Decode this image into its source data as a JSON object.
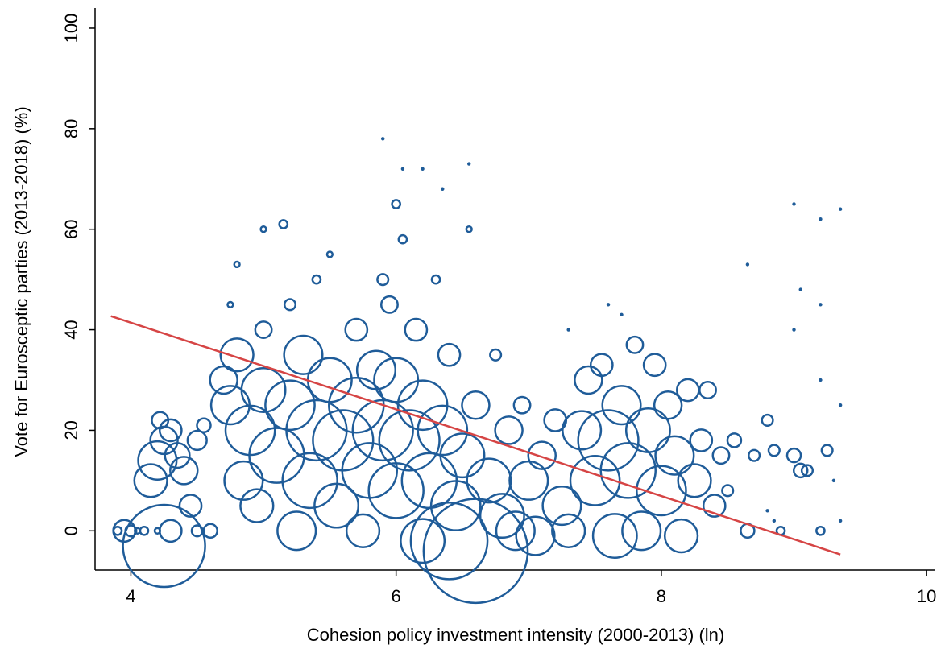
{
  "chart_data": {
    "type": "scatter",
    "x_label": "Cohesion policy investment intensity (2000-2013) (ln)",
    "y_label": "Vote for Eurosceptic parties (2013-2018) (%)",
    "xlim": [
      3.73,
      10.06
    ],
    "xticks": [
      4,
      6,
      8,
      10
    ],
    "ylim": [
      -7.8,
      104
    ],
    "yticks": [
      0,
      20,
      40,
      60,
      80,
      100
    ],
    "points": {
      "color": "#1f5c99",
      "x": [
        3.9,
        4.0,
        4.05,
        4.1,
        4.2,
        3.95,
        4.25,
        4.3,
        4.2,
        4.15,
        4.25,
        4.3,
        4.35,
        4.22,
        4.4,
        4.45,
        4.5,
        4.55,
        4.6,
        4.5,
        4.7,
        4.75,
        4.8,
        4.75,
        4.8,
        4.9,
        4.85,
        4.95,
        5.0,
        5.0,
        5.0,
        5.1,
        5.15,
        5.2,
        5.2,
        5.25,
        5.3,
        5.35,
        5.4,
        5.4,
        5.5,
        5.5,
        5.55,
        5.6,
        5.7,
        5.7,
        5.75,
        5.8,
        5.85,
        5.9,
        5.9,
        5.95,
        6.0,
        6.0,
        6.0,
        6.05,
        6.1,
        6.15,
        6.2,
        6.2,
        6.25,
        6.3,
        6.35,
        6.4,
        6.4,
        6.45,
        6.5,
        6.55,
        6.6,
        6.6,
        6.7,
        6.75,
        6.8,
        6.85,
        6.9,
        6.95,
        7.0,
        7.05,
        7.1,
        7.2,
        7.25,
        7.3,
        7.4,
        7.45,
        7.5,
        7.55,
        7.6,
        7.65,
        7.7,
        7.75,
        7.8,
        7.85,
        7.9,
        7.95,
        8.0,
        8.05,
        8.1,
        8.15,
        8.2,
        8.25,
        8.3,
        8.35,
        8.4,
        8.45,
        8.5,
        8.55,
        8.65,
        8.7,
        8.8,
        8.85,
        8.9,
        9.0,
        9.05,
        9.1,
        9.2,
        9.25,
        8.65,
        8.8,
        8.85,
        9.0,
        9.0,
        9.05,
        9.2,
        9.2,
        9.2,
        9.35,
        9.35,
        9.35,
        9.3,
        5.9,
        6.2,
        6.55,
        6.35,
        6.05,
        7.6,
        7.7,
        7.3
      ],
      "y": [
        0,
        0,
        0,
        0,
        0,
        0,
        -3,
        0,
        14,
        10,
        18,
        20,
        15,
        22,
        12,
        5,
        18,
        21,
        0,
        0,
        30,
        25,
        35,
        45,
        53,
        20,
        10,
        5,
        28,
        40,
        60,
        15,
        61,
        25,
        45,
        0,
        35,
        10,
        20,
        50,
        30,
        55,
        5,
        18,
        40,
        25,
        0,
        12,
        32,
        50,
        20,
        45,
        65,
        30,
        8,
        58,
        18,
        40,
        25,
        -2,
        10,
        50,
        20,
        -2,
        35,
        5,
        15,
        60,
        -4,
        25,
        10,
        35,
        3,
        20,
        0,
        25,
        10,
        -1,
        15,
        22,
        5,
        0,
        20,
        30,
        10,
        33,
        18,
        -1,
        25,
        12,
        37,
        0,
        20,
        33,
        8,
        25,
        15,
        -1,
        28,
        10,
        18,
        28,
        5,
        15,
        8,
        18,
        0,
        15,
        22,
        16,
        0,
        15,
        12,
        12,
        0,
        16,
        53,
        4,
        2,
        65,
        40,
        48,
        62,
        45,
        30,
        64,
        2,
        25,
        10,
        78,
        72,
        73,
        68,
        72,
        45,
        43,
        40
      ],
      "size": [
        3,
        4,
        2,
        3,
        2,
        8,
        30,
        8,
        14,
        12,
        10,
        8,
        9,
        6,
        10,
        8,
        7,
        5,
        5,
        4,
        10,
        14,
        12,
        2,
        2,
        18,
        14,
        12,
        16,
        6,
        2,
        20,
        3,
        18,
        4,
        14,
        14,
        20,
        22,
        3,
        16,
        2,
        16,
        22,
        8,
        20,
        12,
        20,
        14,
        4,
        22,
        6,
        3,
        16,
        20,
        3,
        22,
        8,
        18,
        16,
        20,
        3,
        18,
        28,
        8,
        18,
        16,
        2,
        38,
        10,
        16,
        4,
        16,
        10,
        14,
        6,
        14,
        14,
        10,
        8,
        14,
        12,
        14,
        10,
        18,
        8,
        22,
        16,
        14,
        20,
        6,
        14,
        16,
        8,
        18,
        10,
        14,
        12,
        8,
        12,
        8,
        6,
        8,
        6,
        4,
        5,
        5,
        4,
        4,
        4,
        3,
        5,
        5,
        4,
        3,
        4,
        1,
        1,
        1,
        1,
        1,
        1,
        1,
        1,
        1,
        1,
        1,
        1,
        1,
        1,
        1,
        1,
        1,
        1,
        1,
        1,
        1
      ]
    },
    "fit": {
      "color": "#d64545",
      "x": [
        3.85,
        9.35
      ],
      "y": [
        42.7,
        -4.7
      ]
    }
  }
}
